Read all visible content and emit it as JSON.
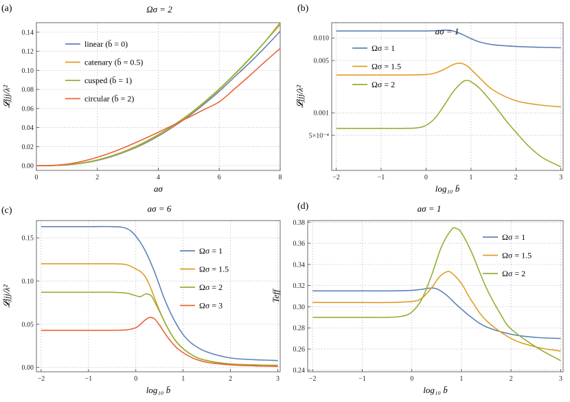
{
  "chart_data": [
    {
      "panel_label": "(a)",
      "type": "line",
      "title": "Ωσ = 2",
      "xlabel": "aσ",
      "ylabel": "𝓛jjj/λ²",
      "xlim": [
        0,
        8
      ],
      "ylim": [
        -0.005,
        0.15
      ],
      "x_ticks": [
        0,
        2,
        4,
        6,
        8
      ],
      "y_ticks": [
        0.0,
        0.02,
        0.04,
        0.06,
        0.08,
        0.1,
        0.12,
        0.14
      ],
      "y_tick_labels": [
        "0.00",
        "0.02",
        "0.04",
        "0.06",
        "0.08",
        "0.10",
        "0.12",
        "0.14"
      ],
      "grid": true,
      "legend_position": "top-left",
      "series": [
        {
          "name": "linear (b̄ = 0)",
          "color": "#5E81B5",
          "x": [
            0,
            0.5,
            1,
            1.5,
            2,
            2.5,
            3,
            3.5,
            4,
            4.5,
            5,
            5.5,
            6,
            6.5,
            7,
            7.5,
            8
          ],
          "y": [
            0,
            0.0001,
            0.0008,
            0.0025,
            0.0055,
            0.0098,
            0.0155,
            0.0225,
            0.031,
            0.041,
            0.052,
            0.0645,
            0.078,
            0.093,
            0.108,
            0.124,
            0.141
          ]
        },
        {
          "name": "catenary (b̄ = 0.5)",
          "color": "#E19C24",
          "x": [
            0,
            0.5,
            1,
            1.5,
            2,
            2.5,
            3,
            3.5,
            4,
            4.5,
            5,
            5.5,
            6,
            6.5,
            7,
            7.5,
            8
          ],
          "y": [
            0,
            0.0001,
            0.0009,
            0.0027,
            0.0058,
            0.0102,
            0.016,
            0.0232,
            0.0318,
            0.0418,
            0.053,
            0.066,
            0.08,
            0.0955,
            0.112,
            0.13,
            0.148
          ]
        },
        {
          "name": "cusped (b̄ = 1)",
          "color": "#8FB032",
          "x": [
            0,
            0.5,
            1,
            1.5,
            2,
            2.5,
            3,
            3.5,
            4,
            4.5,
            5,
            5.5,
            6,
            6.5,
            7,
            7.5,
            8
          ],
          "y": [
            0,
            0.0001,
            0.0009,
            0.0028,
            0.006,
            0.0106,
            0.0165,
            0.0238,
            0.0325,
            0.0425,
            0.0537,
            0.0665,
            0.0805,
            0.096,
            0.1125,
            0.13,
            0.15
          ]
        },
        {
          "name": "circular (b̄ = 2)",
          "color": "#EB6235",
          "x": [
            0,
            0.5,
            1,
            1.5,
            2,
            2.5,
            3,
            3.5,
            4,
            4.5,
            5,
            5.5,
            6,
            6.5,
            7,
            7.5,
            8
          ],
          "y": [
            0,
            0.0002,
            0.0015,
            0.0045,
            0.0088,
            0.0142,
            0.0206,
            0.0276,
            0.035,
            0.0427,
            0.0507,
            0.0588,
            0.067,
            0.0805,
            0.0945,
            0.109,
            0.123
          ]
        }
      ]
    },
    {
      "panel_label": "(b)",
      "type": "line",
      "title": "aσ = 1",
      "xlabel": "log₁₀ b̄",
      "ylabel": "𝓛jjj/λ²",
      "xlim": [
        -2.1,
        3.05
      ],
      "ylim": [
        0.00017,
        0.016
      ],
      "log_y": true,
      "x_ticks": [
        -2,
        -1,
        0,
        1,
        2,
        3
      ],
      "y_ticks": [
        0.0005,
        0.001,
        0.005,
        0.01
      ],
      "y_tick_labels": [
        "5×10⁻⁴",
        "0.001",
        "0.005",
        "0.010"
      ],
      "grid": true,
      "legend_position": "top-left",
      "series": [
        {
          "name": "Ωσ = 1",
          "color": "#5E81B5",
          "x": [
            -2,
            -1,
            -0.5,
            0,
            0.2,
            0.4,
            0.5,
            0.6,
            0.8,
            1,
            1.2,
            1.5,
            2,
            2.5,
            3
          ],
          "y": [
            0.0124,
            0.0124,
            0.0124,
            0.0124,
            0.0125,
            0.0127,
            0.0127,
            0.0124,
            0.0112,
            0.0098,
            0.0088,
            0.0081,
            0.0077,
            0.0075,
            0.0074
          ]
        },
        {
          "name": "Ωσ = 1.5",
          "color": "#E19C24",
          "x": [
            -2,
            -1,
            -0.5,
            0,
            0.2,
            0.4,
            0.6,
            0.75,
            0.9,
            1,
            1.2,
            1.5,
            2,
            2.5,
            3
          ],
          "y": [
            0.0032,
            0.0032,
            0.0032,
            0.00325,
            0.0034,
            0.0038,
            0.0044,
            0.0046,
            0.0043,
            0.0038,
            0.0029,
            0.002,
            0.00145,
            0.00128,
            0.0012
          ]
        },
        {
          "name": "Ωσ = 2",
          "color": "#8FB032",
          "x": [
            -2,
            -1,
            -0.5,
            -0.2,
            0,
            0.2,
            0.4,
            0.6,
            0.8,
            0.9,
            1,
            1.2,
            1.5,
            1.8,
            2,
            2.3,
            2.6,
            3
          ],
          "y": [
            0.00062,
            0.00062,
            0.00062,
            0.00063,
            0.00068,
            0.00085,
            0.00125,
            0.0019,
            0.00255,
            0.0027,
            0.0026,
            0.0021,
            0.0013,
            0.00076,
            0.00055,
            0.00035,
            0.00025,
            0.00019
          ]
        }
      ]
    },
    {
      "panel_label": "(c)",
      "type": "line",
      "title": "aσ = 6",
      "xlabel": "log₁₀ b̄",
      "ylabel": "𝓛jjj/λ²",
      "xlim": [
        -2.1,
        3.05
      ],
      "ylim": [
        -0.005,
        0.17
      ],
      "x_ticks": [
        -2,
        -1,
        0,
        1,
        2,
        3
      ],
      "y_ticks": [
        0.0,
        0.05,
        0.1,
        0.15
      ],
      "y_tick_labels": [
        "0.00",
        "0.05",
        "0.10",
        "0.15"
      ],
      "grid": true,
      "legend_position": "right",
      "series": [
        {
          "name": "Ωσ = 1",
          "color": "#5E81B5",
          "x": [
            -2,
            -1,
            -0.5,
            -0.2,
            0,
            0.2,
            0.4,
            0.6,
            0.8,
            1,
            1.2,
            1.5,
            2,
            2.5,
            3
          ],
          "y": [
            0.163,
            0.163,
            0.163,
            0.161,
            0.152,
            0.135,
            0.11,
            0.08,
            0.056,
            0.038,
            0.027,
            0.018,
            0.011,
            0.009,
            0.008
          ]
        },
        {
          "name": "Ωσ = 1.5",
          "color": "#E19C24",
          "x": [
            -2,
            -1,
            -0.5,
            -0.2,
            0,
            0.1,
            0.2,
            0.3,
            0.5,
            0.7,
            0.9,
            1.2,
            1.5,
            2,
            2.5,
            3
          ],
          "y": [
            0.12,
            0.12,
            0.12,
            0.119,
            0.114,
            0.111,
            0.105,
            0.094,
            0.066,
            0.043,
            0.027,
            0.014,
            0.008,
            0.004,
            0.003,
            0.0025
          ]
        },
        {
          "name": "Ωσ = 2",
          "color": "#8FB032",
          "x": [
            -2,
            -1,
            -0.5,
            -0.2,
            0,
            0.1,
            0.2,
            0.3,
            0.35,
            0.5,
            0.7,
            0.9,
            1.2,
            1.5,
            2,
            2.5,
            3
          ],
          "y": [
            0.087,
            0.087,
            0.087,
            0.086,
            0.083,
            0.082,
            0.085,
            0.084,
            0.081,
            0.065,
            0.043,
            0.027,
            0.014,
            0.008,
            0.004,
            0.003,
            0.002
          ]
        },
        {
          "name": "Ωσ = 3",
          "color": "#EB6235",
          "x": [
            -2,
            -1,
            -0.5,
            -0.2,
            0,
            0.1,
            0.2,
            0.3,
            0.4,
            0.5,
            0.7,
            0.9,
            1.2,
            1.5,
            2,
            2.5,
            3
          ],
          "y": [
            0.043,
            0.043,
            0.043,
            0.0435,
            0.046,
            0.05,
            0.055,
            0.058,
            0.056,
            0.049,
            0.033,
            0.021,
            0.011,
            0.006,
            0.003,
            0.0018,
            0.0012
          ]
        }
      ]
    },
    {
      "panel_label": "(d)",
      "type": "line",
      "title": "aσ = 1",
      "xlabel": "log₁₀ b̄",
      "ylabel": "Teff",
      "xlim": [
        -2.1,
        3.05
      ],
      "ylim": [
        0.2385,
        0.3815
      ],
      "x_ticks": [
        -2,
        -1,
        0,
        1,
        2,
        3
      ],
      "y_ticks": [
        0.24,
        0.26,
        0.28,
        0.3,
        0.32,
        0.34,
        0.36,
        0.38
      ],
      "y_tick_labels": [
        "0.24",
        "0.26",
        "0.28",
        "0.30",
        "0.32",
        "0.34",
        "0.36",
        "0.38"
      ],
      "grid": true,
      "legend_position": "top-right",
      "series": [
        {
          "name": "Ωσ = 1",
          "color": "#5E81B5",
          "x": [
            -2,
            -1,
            -0.5,
            0,
            0.2,
            0.35,
            0.5,
            0.7,
            0.9,
            1.2,
            1.5,
            2,
            2.5,
            3
          ],
          "y": [
            0.315,
            0.315,
            0.315,
            0.3155,
            0.3165,
            0.3175,
            0.317,
            0.311,
            0.302,
            0.29,
            0.281,
            0.274,
            0.271,
            0.27
          ]
        },
        {
          "name": "Ωσ = 1.5",
          "color": "#E19C24",
          "x": [
            -2,
            -1,
            -0.5,
            0,
            0.2,
            0.4,
            0.55,
            0.7,
            0.8,
            1,
            1.2,
            1.5,
            2,
            2.5,
            3
          ],
          "y": [
            0.304,
            0.304,
            0.304,
            0.305,
            0.308,
            0.318,
            0.328,
            0.333,
            0.332,
            0.322,
            0.306,
            0.287,
            0.27,
            0.262,
            0.258
          ]
        },
        {
          "name": "Ωσ = 2",
          "color": "#8FB032",
          "x": [
            -2,
            -1,
            -0.5,
            -0.2,
            0,
            0.2,
            0.4,
            0.6,
            0.8,
            0.9,
            1,
            1.2,
            1.5,
            1.8,
            2,
            2.5,
            3
          ],
          "y": [
            0.29,
            0.29,
            0.29,
            0.291,
            0.295,
            0.307,
            0.33,
            0.357,
            0.373,
            0.374,
            0.37,
            0.352,
            0.318,
            0.292,
            0.279,
            0.262,
            0.249
          ]
        }
      ]
    }
  ]
}
